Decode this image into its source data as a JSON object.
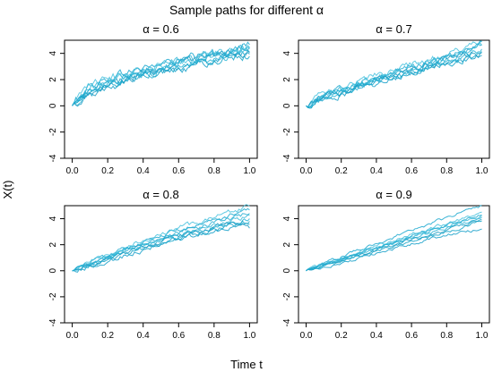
{
  "figure": {
    "title": "Sample paths for different α",
    "xlabel": "Time t",
    "ylabel": "X(t)"
  },
  "chart_data": [
    {
      "type": "line",
      "title": "α = 0.6",
      "alpha": 0.6,
      "xlim": [
        0,
        1
      ],
      "ylim": [
        -4,
        5
      ],
      "xticks": [
        "0.0",
        "0.2",
        "0.4",
        "0.6",
        "0.8",
        "1.0"
      ],
      "yticks": [
        "-4",
        "-2",
        "0",
        "2",
        "4"
      ],
      "x": [
        0.0,
        0.1,
        0.2,
        0.3,
        0.4,
        0.5,
        0.6,
        0.7,
        0.8,
        0.9,
        1.0
      ],
      "series": [
        {
          "values": [
            0.0,
            1.6,
            2.0,
            2.5,
            2.9,
            3.2,
            3.5,
            3.7,
            4.0,
            4.3,
            4.7
          ]
        },
        {
          "values": [
            0.0,
            1.2,
            1.7,
            2.1,
            2.4,
            2.8,
            3.1,
            3.3,
            3.6,
            3.9,
            4.2
          ]
        },
        {
          "values": [
            0.0,
            0.9,
            1.4,
            1.9,
            2.3,
            2.6,
            2.9,
            3.1,
            3.4,
            3.7,
            4.0
          ]
        },
        {
          "values": [
            0.0,
            1.4,
            1.9,
            2.3,
            2.7,
            3.0,
            3.4,
            3.6,
            3.8,
            4.1,
            4.5
          ]
        },
        {
          "values": [
            0.0,
            1.1,
            1.5,
            2.0,
            2.4,
            2.7,
            3.0,
            3.2,
            3.5,
            3.8,
            3.9
          ]
        },
        {
          "values": [
            0.0,
            1.5,
            2.1,
            2.4,
            2.8,
            3.1,
            3.3,
            3.6,
            3.9,
            4.2,
            4.4
          ]
        },
        {
          "values": [
            0.0,
            1.0,
            1.6,
            2.0,
            2.5,
            2.9,
            3.2,
            3.4,
            3.7,
            4.0,
            4.1
          ]
        },
        {
          "values": [
            0.0,
            1.3,
            1.8,
            2.2,
            2.6,
            2.9,
            3.3,
            3.5,
            3.8,
            4.2,
            4.6
          ]
        }
      ]
    },
    {
      "type": "line",
      "title": "α = 0.7",
      "alpha": 0.7,
      "xlim": [
        0,
        1
      ],
      "ylim": [
        -4,
        5
      ],
      "xticks": [
        "0.0",
        "0.2",
        "0.4",
        "0.6",
        "0.8",
        "1.0"
      ],
      "yticks": [
        "-4",
        "-2",
        "0",
        "2",
        "4"
      ],
      "x": [
        0.0,
        0.1,
        0.2,
        0.3,
        0.4,
        0.5,
        0.6,
        0.7,
        0.8,
        0.9,
        1.0
      ],
      "series": [
        {
          "values": [
            0.0,
            0.9,
            1.3,
            1.8,
            2.2,
            2.6,
            3.0,
            3.3,
            3.8,
            4.2,
            4.8
          ]
        },
        {
          "values": [
            0.0,
            0.7,
            1.1,
            1.5,
            1.9,
            2.3,
            2.7,
            3.0,
            3.4,
            3.8,
            4.3
          ]
        },
        {
          "values": [
            0.0,
            0.5,
            0.9,
            1.3,
            1.7,
            2.1,
            2.5,
            2.8,
            3.2,
            3.5,
            3.8
          ]
        },
        {
          "values": [
            0.0,
            0.8,
            1.2,
            1.7,
            2.1,
            2.5,
            2.9,
            3.2,
            3.6,
            4.0,
            4.5
          ]
        },
        {
          "values": [
            0.0,
            0.6,
            1.0,
            1.4,
            1.8,
            2.2,
            2.6,
            2.9,
            3.3,
            3.6,
            4.1
          ]
        },
        {
          "values": [
            0.0,
            1.0,
            1.4,
            1.9,
            2.3,
            2.7,
            3.1,
            3.5,
            3.9,
            4.3,
            4.9
          ]
        },
        {
          "values": [
            0.0,
            0.6,
            1.0,
            1.5,
            2.0,
            2.4,
            2.8,
            3.1,
            3.5,
            3.9,
            4.0
          ]
        },
        {
          "values": [
            0.0,
            0.8,
            1.2,
            1.6,
            2.1,
            2.5,
            2.9,
            3.3,
            3.7,
            4.1,
            4.6
          ]
        }
      ]
    },
    {
      "type": "line",
      "title": "α = 0.8",
      "alpha": 0.8,
      "xlim": [
        0,
        1
      ],
      "ylim": [
        -4,
        5
      ],
      "xticks": [
        "0.0",
        "0.2",
        "0.4",
        "0.6",
        "0.8",
        "1.0"
      ],
      "yticks": [
        "-4",
        "-2",
        "0",
        "2",
        "4"
      ],
      "x": [
        0.0,
        0.1,
        0.2,
        0.3,
        0.4,
        0.5,
        0.6,
        0.7,
        0.8,
        0.9,
        1.0
      ],
      "series": [
        {
          "values": [
            0.0,
            0.6,
            1.1,
            1.7,
            2.2,
            2.7,
            3.1,
            3.5,
            3.9,
            4.3,
            4.6
          ]
        },
        {
          "values": [
            0.0,
            0.5,
            1.0,
            1.5,
            1.9,
            2.3,
            2.6,
            3.0,
            3.3,
            3.7,
            4.0
          ]
        },
        {
          "values": [
            0.0,
            0.3,
            0.7,
            1.2,
            1.6,
            2.0,
            2.4,
            2.7,
            3.0,
            3.3,
            3.5
          ]
        },
        {
          "values": [
            0.0,
            0.5,
            1.0,
            1.6,
            2.0,
            2.4,
            2.8,
            3.2,
            3.6,
            3.9,
            4.2
          ]
        },
        {
          "values": [
            0.0,
            0.4,
            0.8,
            1.3,
            1.7,
            2.1,
            2.5,
            2.8,
            3.2,
            3.5,
            3.8
          ]
        },
        {
          "values": [
            0.0,
            0.7,
            1.2,
            1.8,
            2.3,
            2.8,
            3.3,
            3.7,
            4.1,
            4.5,
            4.9
          ]
        },
        {
          "values": [
            0.0,
            0.4,
            0.9,
            1.4,
            1.8,
            2.2,
            2.6,
            3.0,
            3.4,
            3.7,
            3.2
          ]
        },
        {
          "values": [
            0.0,
            0.5,
            1.1,
            1.6,
            2.0,
            2.5,
            2.9,
            3.3,
            3.7,
            4.0,
            4.4
          ]
        }
      ]
    },
    {
      "type": "line",
      "title": "α = 0.9",
      "alpha": 0.9,
      "xlim": [
        0,
        1
      ],
      "ylim": [
        -4,
        5
      ],
      "xticks": [
        "0.0",
        "0.2",
        "0.4",
        "0.6",
        "0.8",
        "1.0"
      ],
      "yticks": [
        "-4",
        "-2",
        "0",
        "2",
        "4"
      ],
      "x": [
        0.0,
        0.1,
        0.2,
        0.3,
        0.4,
        0.5,
        0.6,
        0.7,
        0.8,
        0.9,
        1.0
      ],
      "series": [
        {
          "values": [
            0.0,
            0.6,
            1.1,
            1.6,
            2.1,
            2.6,
            3.1,
            3.6,
            4.1,
            4.6,
            5.0
          ]
        },
        {
          "values": [
            0.0,
            0.4,
            0.8,
            1.2,
            1.7,
            2.1,
            2.5,
            2.9,
            3.3,
            3.7,
            4.1
          ]
        },
        {
          "values": [
            0.0,
            0.3,
            0.6,
            1.0,
            1.4,
            1.7,
            2.1,
            2.4,
            2.7,
            3.0,
            3.2
          ]
        },
        {
          "values": [
            0.0,
            0.5,
            0.9,
            1.3,
            1.8,
            2.2,
            2.6,
            3.0,
            3.4,
            3.8,
            4.2
          ]
        },
        {
          "values": [
            0.0,
            0.4,
            0.7,
            1.1,
            1.5,
            1.9,
            2.3,
            2.6,
            3.0,
            3.4,
            3.8
          ]
        },
        {
          "values": [
            0.0,
            0.5,
            1.0,
            1.4,
            1.9,
            2.3,
            2.8,
            3.2,
            3.6,
            4.0,
            4.5
          ]
        },
        {
          "values": [
            0.0,
            0.4,
            0.8,
            1.2,
            1.6,
            2.0,
            2.4,
            2.7,
            3.1,
            3.5,
            3.9
          ]
        },
        {
          "values": [
            0.0,
            0.5,
            0.9,
            1.4,
            1.8,
            2.2,
            2.7,
            3.1,
            3.5,
            3.9,
            4.3
          ]
        }
      ]
    }
  ],
  "colors": {
    "lines": [
      "#1ba8cf",
      "#2ab4d6",
      "#17a0c9",
      "#3cbad8",
      "#14a4c8",
      "#48c2de",
      "#1f9ec3",
      "#26aed2"
    ],
    "axis": "#000000"
  }
}
